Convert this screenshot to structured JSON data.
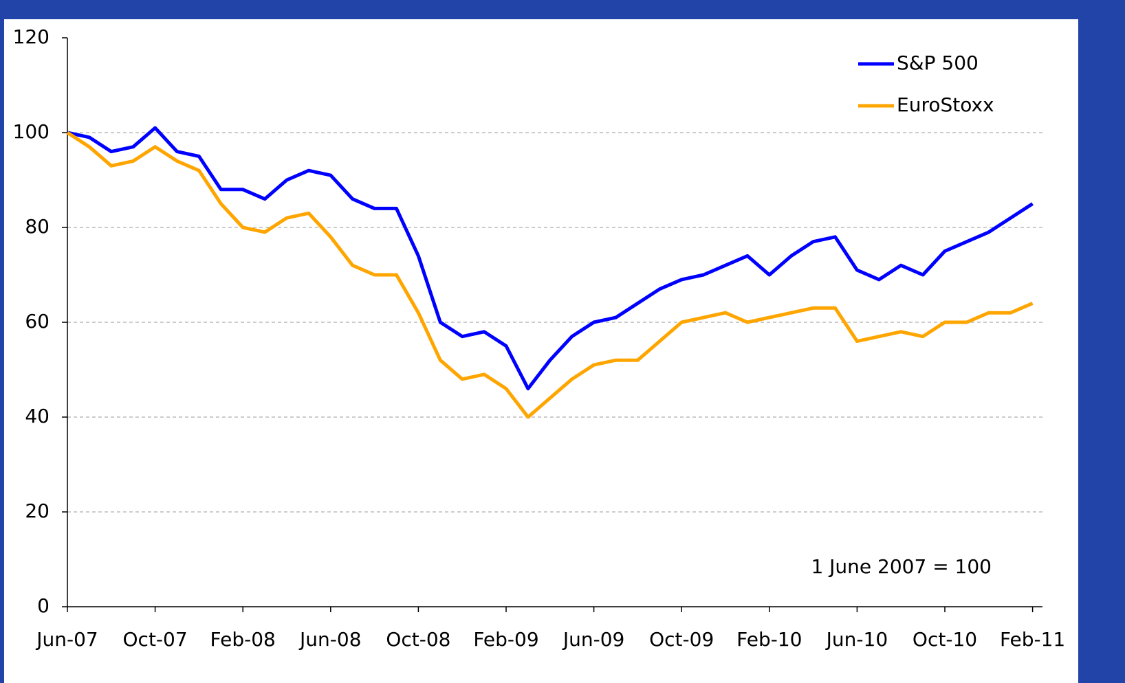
{
  "chart_data": {
    "type": "line",
    "annotation": "1 June 2007 = 100",
    "categories": [
      "Jun-07",
      null,
      null,
      null,
      "Oct-07",
      null,
      null,
      null,
      "Feb-08",
      null,
      null,
      null,
      "Jun-08",
      null,
      null,
      null,
      "Oct-08",
      null,
      null,
      null,
      "Feb-09",
      null,
      null,
      null,
      "Jun-09",
      null,
      null,
      null,
      "Oct-09",
      null,
      null,
      null,
      "Feb-10",
      null,
      null,
      null,
      "Jun-10",
      null,
      null,
      null,
      "Oct-10",
      null,
      null,
      null,
      "Feb-11"
    ],
    "series": [
      {
        "name": "S&P 500",
        "color": "#0000ff",
        "values": [
          100,
          99,
          96,
          97,
          101,
          96,
          95,
          88,
          88,
          86,
          90,
          92,
          91,
          86,
          84,
          84,
          74,
          60,
          57,
          58,
          55,
          46,
          52,
          57,
          60,
          61,
          64,
          67,
          69,
          70,
          72,
          74,
          70,
          74,
          77,
          78,
          71,
          69,
          72,
          70,
          75,
          77,
          79,
          82,
          85
        ]
      },
      {
        "name": "EuroStoxx",
        "color": "#ffa500",
        "values": [
          100,
          97,
          93,
          94,
          97,
          94,
          92,
          85,
          80,
          79,
          82,
          83,
          78,
          72,
          70,
          70,
          62,
          52,
          48,
          49,
          46,
          40,
          44,
          48,
          51,
          52,
          52,
          56,
          60,
          61,
          62,
          60,
          61,
          62,
          63,
          63,
          56,
          57,
          58,
          57,
          60,
          60,
          62,
          62,
          64
        ]
      }
    ],
    "ylim": [
      0,
      120
    ],
    "yticks": [
      0,
      20,
      40,
      60,
      80,
      100,
      120
    ],
    "grid": true,
    "legend": "top-right"
  }
}
